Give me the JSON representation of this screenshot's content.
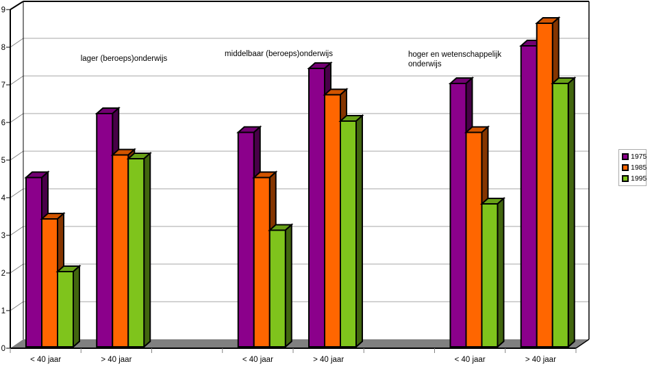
{
  "chart_data": {
    "type": "bar",
    "style": "3d-column",
    "title": "",
    "xlabel": "",
    "ylabel": "",
    "categories": [
      "< 40 jaar",
      "> 40 jaar",
      "",
      "< 40 jaar",
      "> 40 jaar",
      "",
      "< 40 jaar",
      "> 40 jaar"
    ],
    "series": [
      {
        "name": "1975",
        "color": "#8B008B",
        "values": [
          4.5,
          6.2,
          null,
          5.7,
          7.4,
          null,
          7.0,
          8.0
        ]
      },
      {
        "name": "1985",
        "color": "#FF6600",
        "values": [
          3.4,
          5.1,
          null,
          4.5,
          6.7,
          null,
          5.7,
          8.6
        ]
      },
      {
        "name": "1995",
        "color": "#7FC41C",
        "values": [
          2.0,
          5.0,
          null,
          3.1,
          6.0,
          null,
          3.8,
          7.0
        ]
      }
    ],
    "annotations": [
      {
        "text": "lager (beroeps)onderwijs"
      },
      {
        "text": "middelbaar (beroeps)onderwijs"
      },
      {
        "text": "hoger en wetenschappelijk onderwijs"
      }
    ],
    "ylim": [
      0,
      9
    ],
    "y_tick_labels": [
      "0",
      "1",
      "2",
      "3",
      "4",
      "5",
      "6",
      "7",
      "8",
      "9"
    ],
    "grid": true,
    "legend_position": "right",
    "colors": {
      "floor": "#808080",
      "wall": "#FFFFFF",
      "gridline": "#A6A6A6",
      "connector": "#808080",
      "outline": "#000000"
    }
  }
}
